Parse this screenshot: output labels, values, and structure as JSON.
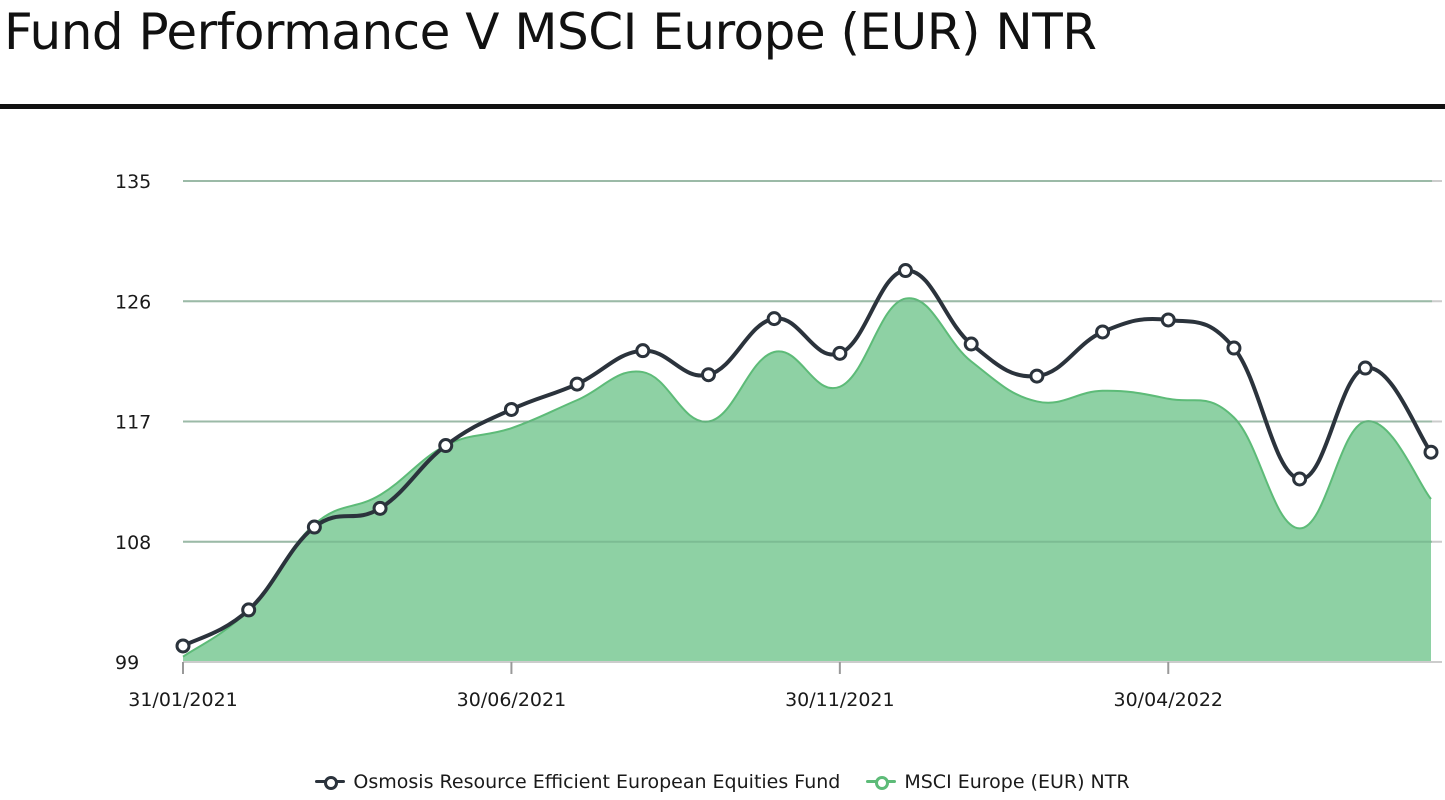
{
  "title": "Fund Performance V MSCI Europe (EUR) NTR",
  "colors": {
    "fund_line": "#2b333c",
    "index_line": "#5dbb78",
    "index_fill": "#8ed1a4",
    "grid": "#cccccc",
    "rule": "#111111"
  },
  "chart_data": {
    "type": "area",
    "x": [
      "31/01/2021",
      "28/02/2021",
      "31/03/2021",
      "30/04/2021",
      "31/05/2021",
      "30/06/2021",
      "31/07/2021",
      "31/08/2021",
      "30/09/2021",
      "31/10/2021",
      "30/11/2021",
      "31/12/2021",
      "31/01/2022",
      "28/02/2022",
      "31/03/2022",
      "30/04/2022",
      "31/05/2022",
      "30/06/2022",
      "31/07/2022",
      "31/08/2022"
    ],
    "x_tick_labels": [
      "31/01/2021",
      "30/06/2021",
      "30/11/2021",
      "30/04/2022"
    ],
    "y_ticks": [
      99,
      108,
      117,
      126,
      135
    ],
    "ylim": [
      99,
      135
    ],
    "grid": true,
    "legend_position": "bottom",
    "series": [
      {
        "name": "Osmosis Resource Efficient European Equities Fund",
        "style": "line-with-markers",
        "color": "#2b333c",
        "values": [
          100.2,
          102.9,
          109.1,
          110.5,
          115.2,
          117.9,
          119.8,
          122.3,
          120.5,
          124.7,
          122.1,
          128.3,
          122.8,
          120.4,
          123.7,
          124.6,
          122.5,
          112.7,
          121.0,
          114.7
        ]
      },
      {
        "name": "MSCI Europe (EUR) NTR",
        "style": "area",
        "color": "#5dbb78",
        "values": [
          99.4,
          102.9,
          109.3,
          111.5,
          115.2,
          116.5,
          118.6,
          120.7,
          117.0,
          122.2,
          119.6,
          126.2,
          121.5,
          118.5,
          119.3,
          118.7,
          117.3,
          109.0,
          117.0,
          111.2
        ]
      }
    ]
  },
  "legend": {
    "fund_label": "Osmosis Resource Efficient European Equities Fund",
    "index_label": "MSCI Europe (EUR) NTR"
  }
}
